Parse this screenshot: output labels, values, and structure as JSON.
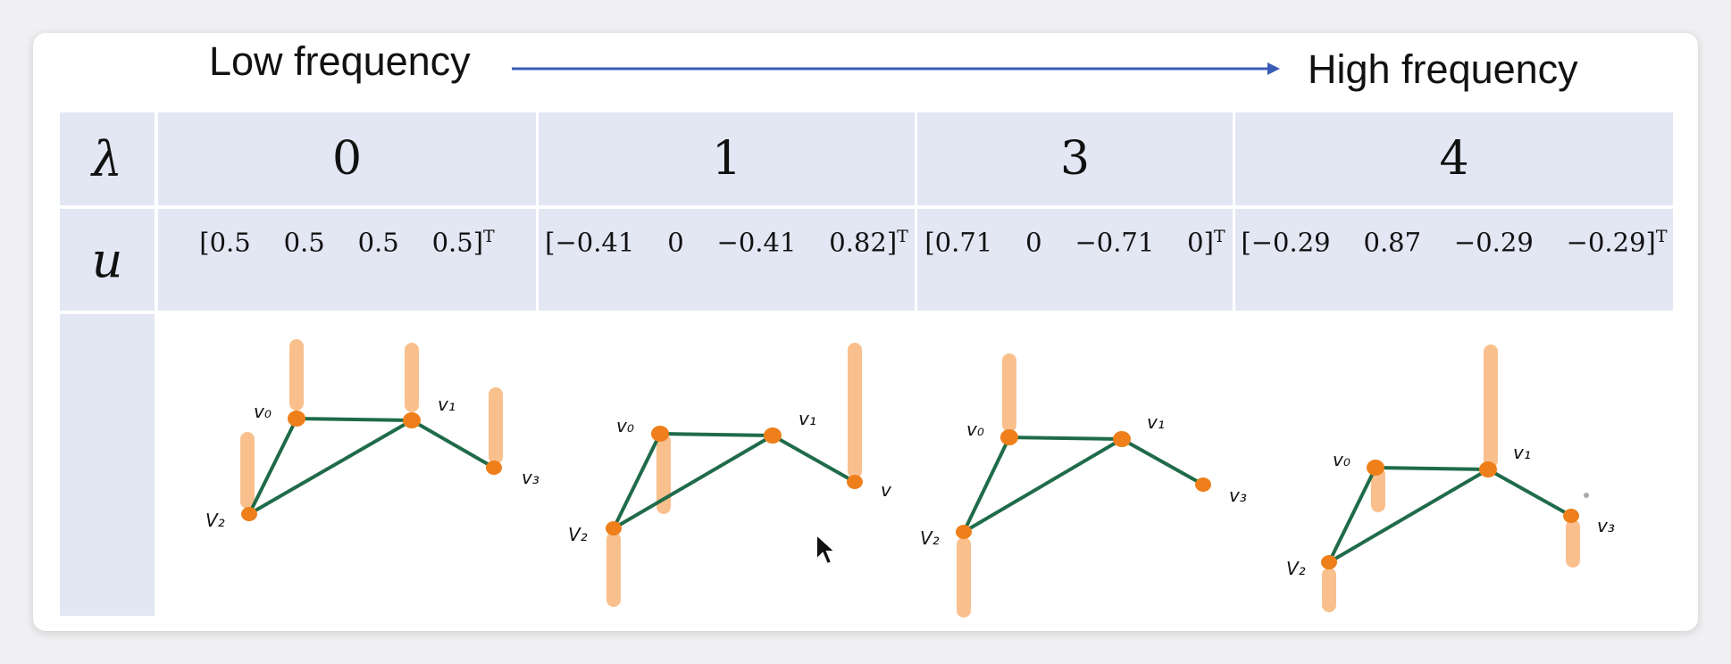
{
  "header": {
    "low_label": "Low frequency",
    "high_label": "High frequency",
    "arrow_color": "#3a5bb5"
  },
  "rows": {
    "lambda_symbol": "λ",
    "u_symbol": "u"
  },
  "columns": [
    {
      "lambda": "0",
      "u": "[0.5    0.5    0.5    0.5]",
      "u_sup": "T"
    },
    {
      "lambda": "1",
      "u": "[−0.41    0    −0.41    0.82]",
      "u_sup": "T"
    },
    {
      "lambda": "3",
      "u": "[0.71    0    −0.71    0]",
      "u_sup": "T"
    },
    {
      "lambda": "4",
      "u": "[−0.29    0.87    −0.29    −0.29]",
      "u_sup": "T"
    }
  ],
  "graphs": {
    "node_labels_1": [
      "v₀",
      "v₁",
      "V₂",
      "v₃"
    ],
    "node_labels_2": [
      "v₀",
      "v₁",
      "V₂",
      "v"
    ],
    "node_labels_3": [
      "v₀",
      "v₁",
      "V₂",
      "v₃"
    ],
    "node_labels_4": [
      "v₀",
      "v₁",
      "V₂",
      "v₃"
    ],
    "edge_color": "#1f6b4a",
    "node_color": "#ee7f1a",
    "bar_color": "#f9c08d"
  }
}
